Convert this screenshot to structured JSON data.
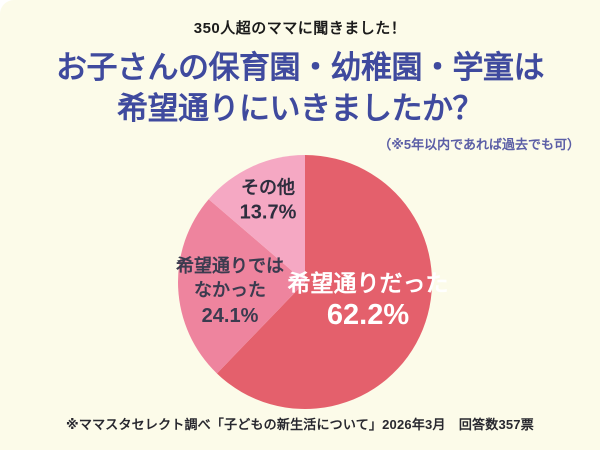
{
  "header": {
    "kicker": "350人超のママに聞きました！"
  },
  "title": {
    "line1": "お子さんの保育園・幼稚園・学童は",
    "line2": "希望通りにいきましたか？",
    "note": "（※5年以内であれば過去でも可）"
  },
  "footer": {
    "caption": "※ママスタセレクト調べ「子どもの新生活について」2026年3月　回答数357票"
  },
  "colors": {
    "background": "#FCFBE9",
    "title_text": "#3F4A9E",
    "note_text": "#5B5EA6",
    "dark_label_text": "#3B3B4F",
    "light_label_text": "#FFFFFF"
  },
  "chart_data": {
    "type": "pie",
    "title": "お子さんの保育園・幼稚園・学童は希望通りにいきましたか？",
    "start_angle": "top",
    "direction": "clockwise",
    "segments": [
      {
        "label": "希望通りだった",
        "label_lines": [
          "希望通りだった"
        ],
        "value": 62.2,
        "pct_label": "62.2%",
        "color": "#E4606C",
        "label_color": "#FFFFFF"
      },
      {
        "label": "希望通りではなかった",
        "label_lines": [
          "希望通りでは",
          "なかった"
        ],
        "value": 24.1,
        "pct_label": "24.1%",
        "color": "#EE849E",
        "label_color": "#3B3B4F"
      },
      {
        "label": "その他",
        "label_lines": [
          "その他"
        ],
        "value": 13.7,
        "pct_label": "13.7%",
        "color": "#F5A8C3",
        "label_color": "#2E2E3E"
      }
    ]
  }
}
